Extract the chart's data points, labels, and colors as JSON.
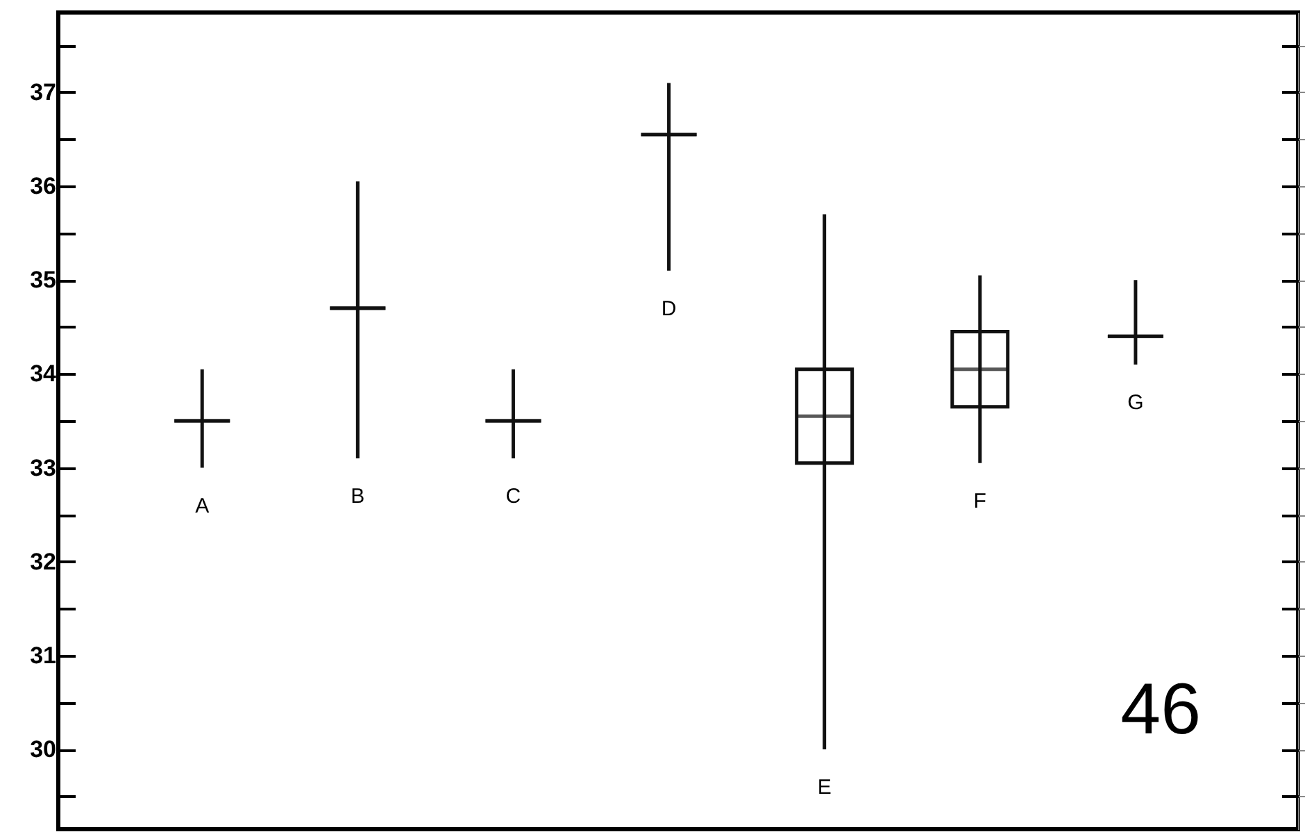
{
  "chart_data": {
    "type": "box",
    "categories": [
      "A",
      "B",
      "C",
      "D",
      "E",
      "F",
      "G"
    ],
    "series": [
      {
        "color": "#111111",
        "boxes": [
          {
            "low": 33.0,
            "q1": 33.5,
            "median": 33.5,
            "q3": 33.5,
            "high": 34.05
          },
          {
            "low": 33.1,
            "q1": 34.7,
            "median": 34.7,
            "q3": 34.7,
            "high": 36.05
          },
          {
            "low": 33.1,
            "q1": 33.5,
            "median": 33.5,
            "q3": 33.5,
            "high": 34.05
          },
          {
            "low": 35.1,
            "q1": 36.55,
            "median": 36.55,
            "q3": 36.55,
            "high": 37.1
          },
          {
            "low": 30.0,
            "q1": 33.05,
            "median": 33.55,
            "q3": 34.05,
            "high": 35.7
          },
          {
            "low": 33.05,
            "q1": 33.65,
            "median": 34.05,
            "q3": 34.45,
            "high": 35.05
          },
          {
            "low": 34.1,
            "q1": 34.4,
            "median": 34.4,
            "q3": 34.4,
            "high": 35.0
          }
        ]
      }
    ],
    "ylim": [
      29.15,
      37.85
    ],
    "yticks": [
      {
        "value": 29.5,
        "label": null
      },
      30,
      {
        "value": 30.5,
        "label": null
      },
      31,
      {
        "value": 31.5,
        "label": null
      },
      32,
      {
        "value": 32.5,
        "label": null
      },
      33,
      {
        "value": 33.5,
        "label": null
      },
      34,
      {
        "value": 34.5,
        "label": null
      },
      35,
      {
        "value": 35.5,
        "label": null
      },
      36,
      {
        "value": 36.5,
        "label": null
      },
      37,
      {
        "value": 37.5,
        "label": null
      }
    ],
    "grid": false,
    "tick_labels": "y",
    "annotations": [
      "46"
    ]
  }
}
